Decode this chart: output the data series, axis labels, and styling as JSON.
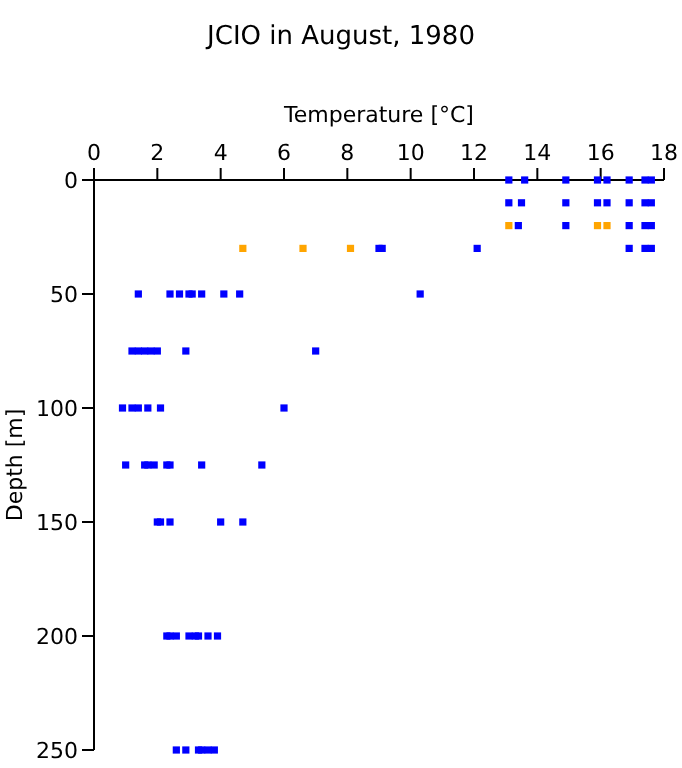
{
  "chart_data": {
    "type": "scatter",
    "title": "JCIO in August, 1980",
    "xlabel": "Temperature [°C]",
    "ylabel": "Depth [m]",
    "xlim": [
      0,
      18
    ],
    "xticks": [
      0,
      2,
      4,
      6,
      8,
      10,
      12,
      14,
      16,
      18
    ],
    "ylim": [
      250,
      0
    ],
    "yticks": [
      0,
      50,
      100,
      150,
      200,
      250
    ],
    "grid": false,
    "marker": "square",
    "series": [
      {
        "color": "#0000ff",
        "x": [
          13.1,
          13.6,
          14.9,
          15.9,
          16.2,
          16.9,
          17.4,
          17.6,
          13.1,
          13.5,
          14.9,
          15.9,
          16.2,
          16.9,
          17.4,
          17.6,
          13.4,
          14.9,
          16.9,
          17.4,
          17.6,
          9.0,
          9.1,
          12.1,
          16.9,
          17.4,
          17.6,
          1.4,
          2.4,
          2.7,
          3.0,
          3.1,
          3.4,
          4.1,
          4.6,
          10.3,
          1.2,
          1.4,
          1.6,
          1.8,
          2.0,
          2.9,
          7.0,
          0.9,
          1.2,
          1.4,
          1.7,
          2.1,
          6.0,
          1.0,
          1.6,
          1.7,
          1.9,
          2.3,
          2.4,
          3.4,
          5.3,
          2.0,
          2.1,
          2.4,
          4.0,
          4.7,
          2.3,
          2.4,
          2.6,
          3.0,
          3.2,
          3.3,
          3.6,
          3.9,
          2.6,
          2.9,
          3.3,
          3.4,
          3.6,
          3.8
        ],
        "values": [
          0,
          0,
          0,
          0,
          0,
          0,
          0,
          0,
          10,
          10,
          10,
          10,
          10,
          10,
          10,
          10,
          20,
          20,
          20,
          20,
          20,
          30,
          30,
          30,
          30,
          30,
          30,
          50,
          50,
          50,
          50,
          50,
          50,
          50,
          50,
          50,
          75,
          75,
          75,
          75,
          75,
          75,
          75,
          100,
          100,
          100,
          100,
          100,
          100,
          125,
          125,
          125,
          125,
          125,
          125,
          125,
          125,
          150,
          150,
          150,
          150,
          150,
          200,
          200,
          200,
          200,
          200,
          200,
          200,
          200,
          250,
          250,
          250,
          250,
          250,
          250
        ]
      },
      {
        "color": "#ffa500",
        "x": [
          13.1,
          15.9,
          16.2,
          4.7,
          6.6,
          8.1
        ],
        "values": [
          20,
          20,
          20,
          30,
          30,
          30
        ]
      }
    ]
  }
}
